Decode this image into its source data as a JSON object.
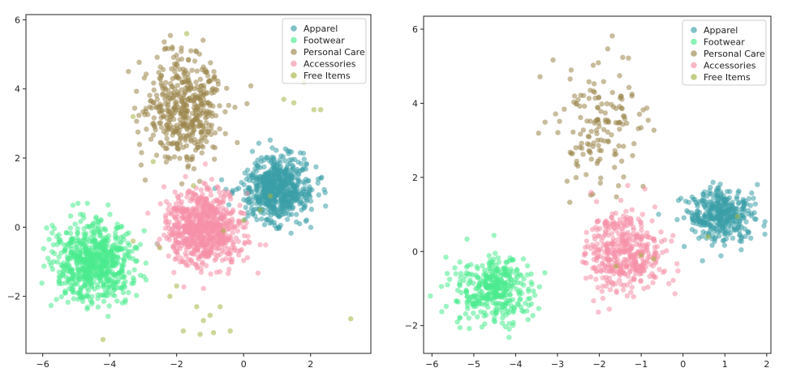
{
  "chart_data": [
    {
      "type": "scatter",
      "title": "",
      "xlabel": "",
      "ylabel": "",
      "xlim": [
        -6.5,
        3.8
      ],
      "ylim": [
        -3.65,
        6.15
      ],
      "xticks": [
        -6,
        -4,
        -2,
        0,
        2
      ],
      "yticks": [
        -2,
        0,
        2,
        4,
        6
      ],
      "grid": false,
      "legend_position": "top-right",
      "series": [
        {
          "name": "Apparel",
          "color": "#3a9fa8",
          "center": [
            1.0,
            1.1
          ],
          "spread": [
            0.5,
            0.45
          ],
          "count": 650
        },
        {
          "name": "Footwear",
          "color": "#4aeb8e",
          "center": [
            -4.5,
            -1.0
          ],
          "spread": [
            0.6,
            0.55
          ],
          "count": 700
        },
        {
          "name": "Personal Care",
          "color": "#9a854b",
          "center": [
            -1.8,
            3.4
          ],
          "spread": [
            0.6,
            0.8
          ],
          "count": 450
        },
        {
          "name": "Accessories",
          "color": "#f590a8",
          "center": [
            -1.2,
            0.0
          ],
          "spread": [
            0.55,
            0.55
          ],
          "count": 750
        },
        {
          "name": "Free Items",
          "color": "#a6b545",
          "points": [
            [
              -3.3,
              3.2
            ],
            [
              -1.7,
              5.6
            ],
            [
              1.2,
              3.7
            ],
            [
              1.5,
              3.6
            ],
            [
              1.8,
              4.2
            ],
            [
              2.1,
              3.4
            ],
            [
              2.3,
              3.4
            ],
            [
              -2.7,
              1.9
            ],
            [
              -3.3,
              -0.4
            ],
            [
              -2.2,
              -2.0
            ],
            [
              -2.0,
              -1.7
            ],
            [
              -1.4,
              -2.3
            ],
            [
              -1.2,
              -2.7
            ],
            [
              -1.3,
              -3.1
            ],
            [
              -1.0,
              -2.55
            ],
            [
              -0.9,
              -3.05
            ],
            [
              -0.4,
              -3.0
            ],
            [
              -0.7,
              -2.3
            ],
            [
              -1.8,
              -3.0
            ],
            [
              -4.2,
              -3.25
            ],
            [
              3.2,
              -2.65
            ],
            [
              -2.5,
              -0.6
            ],
            [
              -0.6,
              -0.1
            ],
            [
              0.0,
              0.2
            ],
            [
              -1.5,
              1.2
            ],
            [
              0.5,
              0.5
            ],
            [
              0.8,
              0.9
            ]
          ]
        }
      ]
    },
    {
      "type": "scatter",
      "title": "",
      "xlabel": "",
      "ylabel": "",
      "xlim": [
        -6.2,
        2.1
      ],
      "ylim": [
        -2.75,
        6.35
      ],
      "xticks": [
        -6,
        -5,
        -4,
        -3,
        -2,
        -1,
        0,
        1,
        2
      ],
      "yticks": [
        -2,
        0,
        2,
        4,
        6
      ],
      "grid": false,
      "legend_position": "top-right",
      "series": [
        {
          "name": "Apparel",
          "color": "#3a9fa8",
          "center": [
            0.9,
            1.0
          ],
          "spread": [
            0.4,
            0.35
          ],
          "count": 380
        },
        {
          "name": "Footwear",
          "color": "#4aeb8e",
          "center": [
            -4.5,
            -1.0
          ],
          "spread": [
            0.45,
            0.45
          ],
          "count": 380
        },
        {
          "name": "Personal Care",
          "color": "#9a854b",
          "center": [
            -2.0,
            3.5
          ],
          "spread": [
            0.5,
            0.85
          ],
          "count": 150
        },
        {
          "name": "Accessories",
          "color": "#f590a8",
          "center": [
            -1.4,
            0.0
          ],
          "spread": [
            0.45,
            0.55
          ],
          "count": 420
        },
        {
          "name": "Free Items",
          "color": "#a6b545",
          "points": [
            [
              -1.6,
              -0.4
            ],
            [
              -1.0,
              -0.1
            ],
            [
              -0.7,
              -0.2
            ],
            [
              1.3,
              0.95
            ],
            [
              0.6,
              0.4
            ]
          ]
        }
      ]
    }
  ]
}
